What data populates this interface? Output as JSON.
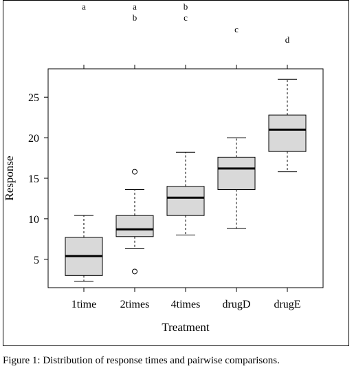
{
  "chart_data": {
    "type": "box",
    "title": "",
    "xlabel": "Treatment",
    "ylabel": "Response",
    "categories": [
      "1time",
      "2times",
      "4times",
      "drugD",
      "drugE"
    ],
    "ylim": [
      1.5,
      28.5
    ],
    "yticks": [
      5,
      10,
      15,
      20,
      25
    ],
    "box_fill": "#d9d9d9",
    "boxes": [
      {
        "category": "1time",
        "whisker_low": 2.3,
        "q1": 3.0,
        "median": 5.4,
        "q3": 7.7,
        "whisker_high": 10.4,
        "outliers": []
      },
      {
        "category": "2times",
        "whisker_low": 6.3,
        "q1": 7.8,
        "median": 8.7,
        "q3": 10.4,
        "whisker_high": 13.6,
        "outliers": [
          15.8,
          3.5
        ]
      },
      {
        "category": "4times",
        "whisker_low": 8.0,
        "q1": 10.4,
        "median": 12.6,
        "q3": 14.0,
        "whisker_high": 18.2,
        "outliers": []
      },
      {
        "category": "drugD",
        "whisker_low": 8.8,
        "q1": 13.6,
        "median": 16.2,
        "q3": 17.6,
        "whisker_high": 20.0,
        "outliers": []
      },
      {
        "category": "drugE",
        "whisker_low": 15.8,
        "q1": 18.3,
        "median": 21.0,
        "q3": 22.8,
        "whisker_high": 27.2,
        "outliers": []
      }
    ],
    "group_letters": [
      {
        "category": "1time",
        "letters": [
          "a"
        ]
      },
      {
        "category": "2times",
        "letters": [
          "a",
          "b"
        ]
      },
      {
        "category": "4times",
        "letters": [
          "b",
          "c"
        ]
      },
      {
        "category": "drugD",
        "letters": [
          "c"
        ]
      },
      {
        "category": "drugE",
        "letters": [
          "d"
        ]
      }
    ]
  },
  "caption": "Figure 1: Distribution of response times and pairwise comparisons."
}
